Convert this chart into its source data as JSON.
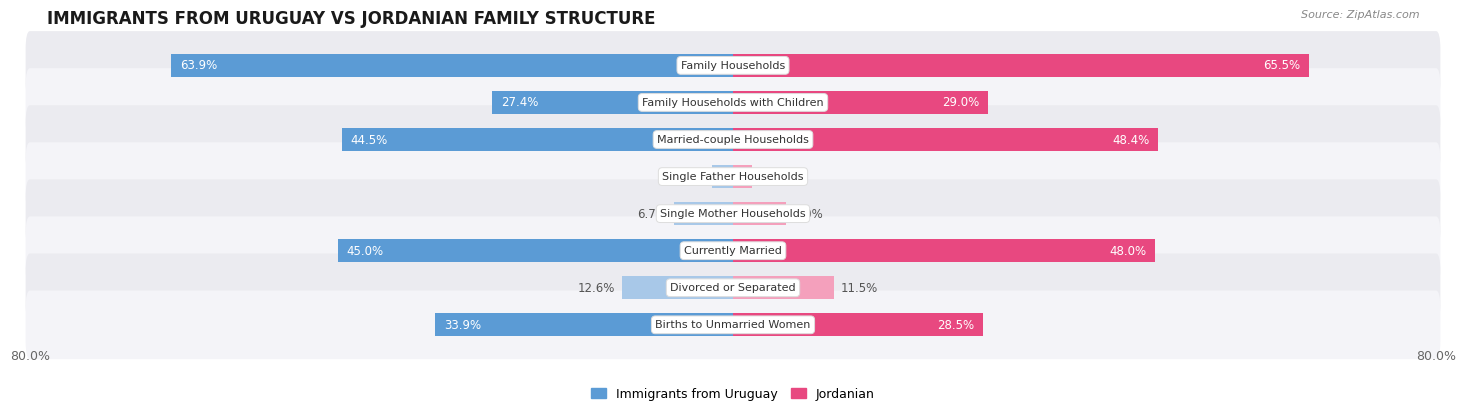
{
  "title": "IMMIGRANTS FROM URUGUAY VS JORDANIAN FAMILY STRUCTURE",
  "source": "Source: ZipAtlas.com",
  "categories": [
    "Family Households",
    "Family Households with Children",
    "Married-couple Households",
    "Single Father Households",
    "Single Mother Households",
    "Currently Married",
    "Divorced or Separated",
    "Births to Unmarried Women"
  ],
  "uruguay_values": [
    63.9,
    27.4,
    44.5,
    2.4,
    6.7,
    45.0,
    12.6,
    33.9
  ],
  "jordanian_values": [
    65.5,
    29.0,
    48.4,
    2.2,
    6.0,
    48.0,
    11.5,
    28.5
  ],
  "max_value": 80.0,
  "uruguay_color_high": "#5b9bd5",
  "uruguay_color_low": "#a8c8e8",
  "jordanian_color_high": "#e84880",
  "jordanian_color_low": "#f4a0bc",
  "row_bg_colors": [
    "#ebebf0",
    "#f4f4f8"
  ],
  "axis_label_left": "80.0%",
  "axis_label_right": "80.0%",
  "legend_uruguay": "Immigrants from Uruguay",
  "legend_jordanian": "Jordanian",
  "title_fontsize": 12,
  "value_fontsize": 8.5,
  "category_fontsize": 8.0,
  "high_threshold": 15,
  "white_text_color": "#ffffff",
  "dark_text_color": "#555555"
}
